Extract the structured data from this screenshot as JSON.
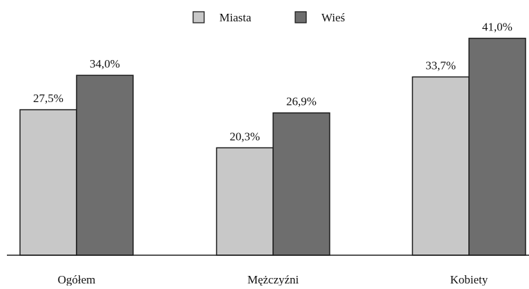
{
  "chart_data": {
    "type": "bar",
    "categories": [
      "Ogółem",
      "Mężczyźni",
      "Kobiety"
    ],
    "series": [
      {
        "name": "Miasta",
        "values": [
          27.5,
          20.3,
          33.7
        ],
        "labels": [
          "27,5%",
          "20,3%",
          "33,7%"
        ],
        "color": "#c8c8c8"
      },
      {
        "name": "Wieś",
        "values": [
          34.0,
          26.9,
          41.0
        ],
        "labels": [
          "34,0%",
          "26,9%",
          "41,0%"
        ],
        "color": "#6e6e6e"
      }
    ],
    "legend_position": "top-center",
    "grid": false
  },
  "colors": {
    "bar_stroke": "#1a1a1a",
    "axis": "#1a1a1a"
  }
}
